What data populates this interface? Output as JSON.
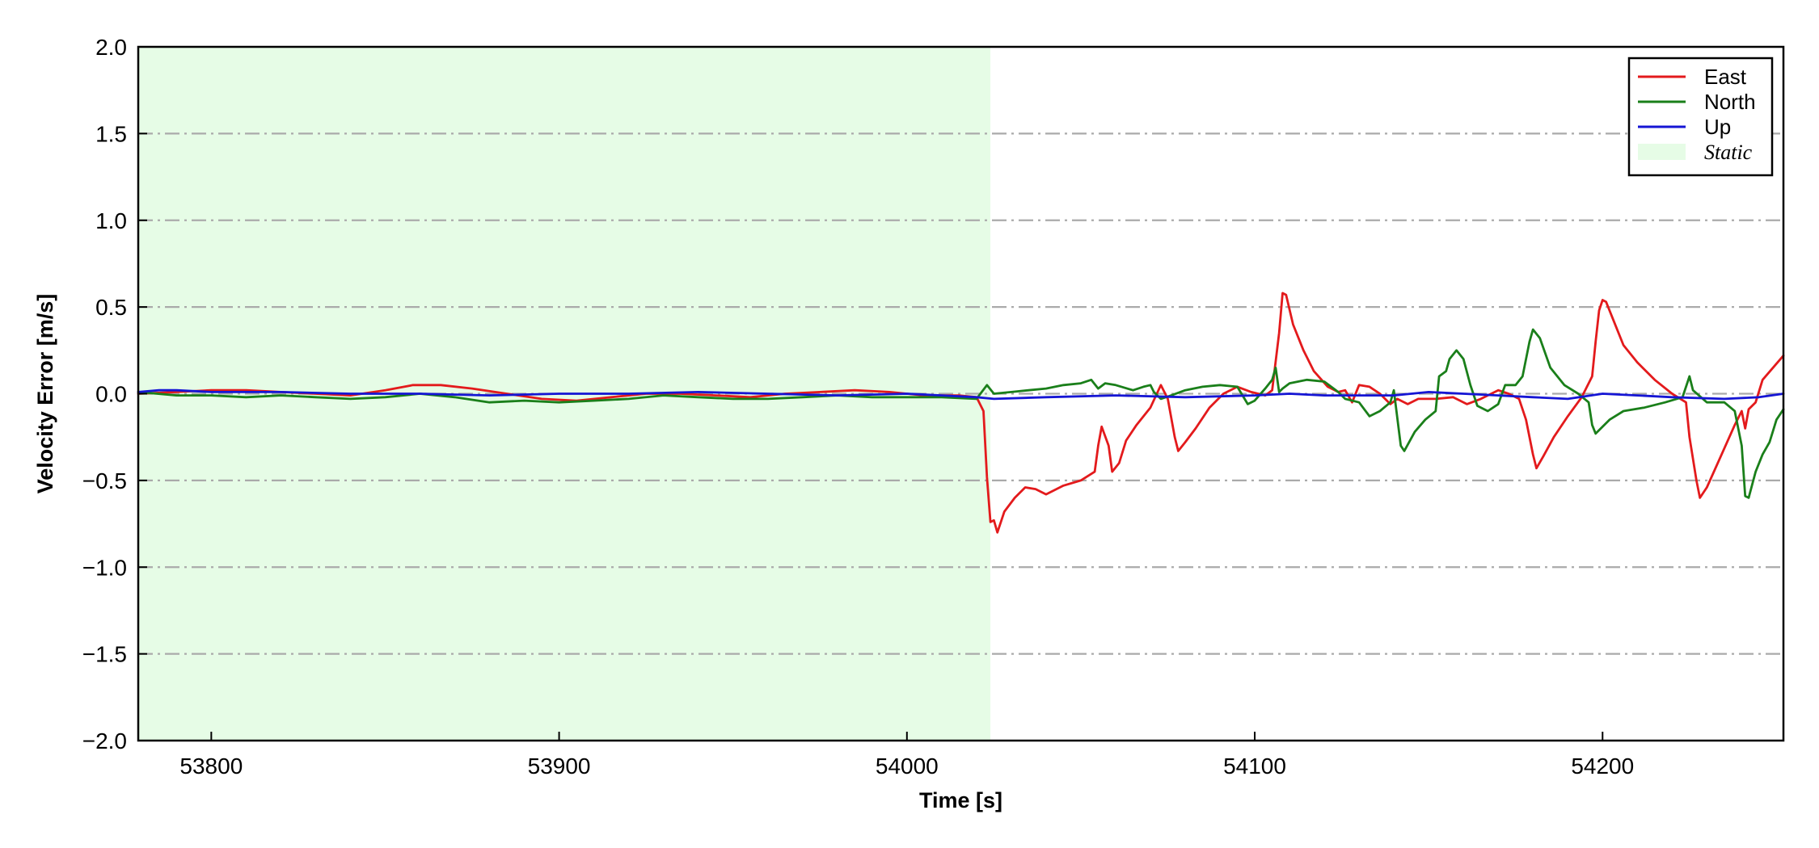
{
  "chart_data": {
    "type": "line",
    "xlabel": "Time [s]",
    "ylabel": "Velocity Error [m/s]",
    "xlim": [
      53779,
      54252
    ],
    "ylim": [
      -2.0,
      2.0
    ],
    "xticks": [
      53800,
      53900,
      54000,
      54100,
      54200
    ],
    "xtick_labels": [
      "53800",
      "53900",
      "54000",
      "54100",
      "54200"
    ],
    "yticks": [
      2.0,
      1.5,
      1.0,
      0.5,
      0.0,
      -0.5,
      -1.0,
      -1.5,
      -2.0
    ],
    "ytick_labels": [
      "2.0",
      "1.5",
      "1.0",
      "0.5",
      "0.0",
      "−0.5",
      "−1.0",
      "−1.5",
      "−2.0"
    ],
    "grid": "horizontal dash-dot",
    "legend_position": "top-right",
    "shaded_region": {
      "label": "Static",
      "x_start": 53779,
      "x_end": 54024,
      "color": "#e6fce6"
    },
    "series": [
      {
        "name": "East",
        "color": "#e31a1c",
        "points": [
          [
            53779,
            0.0
          ],
          [
            53790,
            0.01
          ],
          [
            53800,
            0.02
          ],
          [
            53810,
            0.02
          ],
          [
            53820,
            0.01
          ],
          [
            53830,
            0.0
          ],
          [
            53840,
            -0.01
          ],
          [
            53850,
            0.02
          ],
          [
            53858,
            0.05
          ],
          [
            53866,
            0.05
          ],
          [
            53875,
            0.03
          ],
          [
            53885,
            0.0
          ],
          [
            53895,
            -0.03
          ],
          [
            53905,
            -0.04
          ],
          [
            53915,
            -0.02
          ],
          [
            53925,
            0.0
          ],
          [
            53935,
            0.0
          ],
          [
            53945,
            -0.01
          ],
          [
            53955,
            -0.02
          ],
          [
            53965,
            0.0
          ],
          [
            53975,
            0.01
          ],
          [
            53985,
            0.02
          ],
          [
            53995,
            0.01
          ],
          [
            54005,
            -0.01
          ],
          [
            54015,
            -0.01
          ],
          [
            54020,
            -0.02
          ],
          [
            54022,
            -0.1
          ],
          [
            54023,
            -0.48
          ],
          [
            54024,
            -0.74
          ],
          [
            54025,
            -0.73
          ],
          [
            54026,
            -0.8
          ],
          [
            54028,
            -0.68
          ],
          [
            54031,
            -0.6
          ],
          [
            54034,
            -0.54
          ],
          [
            54037,
            -0.55
          ],
          [
            54040,
            -0.58
          ],
          [
            54045,
            -0.53
          ],
          [
            54050,
            -0.5
          ],
          [
            54054,
            -0.45
          ],
          [
            54055,
            -0.3
          ],
          [
            54056,
            -0.19
          ],
          [
            54058,
            -0.3
          ],
          [
            54059,
            -0.45
          ],
          [
            54061,
            -0.4
          ],
          [
            54063,
            -0.27
          ],
          [
            54066,
            -0.18
          ],
          [
            54070,
            -0.08
          ],
          [
            54073,
            0.05
          ],
          [
            54075,
            -0.03
          ],
          [
            54077,
            -0.25
          ],
          [
            54078,
            -0.33
          ],
          [
            54080,
            -0.28
          ],
          [
            54083,
            -0.2
          ],
          [
            54087,
            -0.08
          ],
          [
            54091,
            0.0
          ],
          [
            54095,
            0.04
          ],
          [
            54099,
            0.01
          ],
          [
            54103,
            -0.01
          ],
          [
            54105,
            0.02
          ],
          [
            54107,
            0.35
          ],
          [
            54108,
            0.58
          ],
          [
            54109,
            0.57
          ],
          [
            54111,
            0.4
          ],
          [
            54114,
            0.25
          ],
          [
            54117,
            0.13
          ],
          [
            54121,
            0.04
          ],
          [
            54124,
            0.01
          ],
          [
            54126,
            0.02
          ],
          [
            54128,
            -0.05
          ],
          [
            54130,
            0.05
          ],
          [
            54133,
            0.04
          ],
          [
            54136,
            0.0
          ],
          [
            54139,
            -0.06
          ],
          [
            54141,
            -0.03
          ],
          [
            54144,
            -0.06
          ],
          [
            54147,
            -0.03
          ],
          [
            54152,
            -0.03
          ],
          [
            54157,
            -0.02
          ],
          [
            54161,
            -0.06
          ],
          [
            54165,
            -0.03
          ],
          [
            54170,
            0.02
          ],
          [
            54173,
            0.0
          ],
          [
            54176,
            -0.03
          ],
          [
            54178,
            -0.15
          ],
          [
            54180,
            -0.35
          ],
          [
            54181,
            -0.43
          ],
          [
            54183,
            -0.36
          ],
          [
            54186,
            -0.25
          ],
          [
            54190,
            -0.13
          ],
          [
            54194,
            -0.02
          ],
          [
            54197,
            0.1
          ],
          [
            54198,
            0.3
          ],
          [
            54199,
            0.48
          ],
          [
            54200,
            0.54
          ],
          [
            54201,
            0.53
          ],
          [
            54203,
            0.43
          ],
          [
            54206,
            0.28
          ],
          [
            54210,
            0.18
          ],
          [
            54215,
            0.08
          ],
          [
            54220,
            0.0
          ],
          [
            54224,
            -0.05
          ],
          [
            54225,
            -0.25
          ],
          [
            54227,
            -0.5
          ],
          [
            54228,
            -0.6
          ],
          [
            54230,
            -0.54
          ],
          [
            54234,
            -0.36
          ],
          [
            54238,
            -0.18
          ],
          [
            54240,
            -0.1
          ],
          [
            54241,
            -0.2
          ],
          [
            54242,
            -0.09
          ],
          [
            54244,
            -0.05
          ],
          [
            54246,
            0.08
          ],
          [
            54249,
            0.15
          ],
          [
            54252,
            0.22
          ]
        ]
      },
      {
        "name": "North",
        "color": "#1a7f1a",
        "points": [
          [
            53779,
            0.01
          ],
          [
            53790,
            -0.01
          ],
          [
            53800,
            -0.01
          ],
          [
            53810,
            -0.02
          ],
          [
            53820,
            -0.01
          ],
          [
            53830,
            -0.02
          ],
          [
            53840,
            -0.03
          ],
          [
            53850,
            -0.02
          ],
          [
            53860,
            0.0
          ],
          [
            53870,
            -0.02
          ],
          [
            53880,
            -0.05
          ],
          [
            53890,
            -0.04
          ],
          [
            53900,
            -0.05
          ],
          [
            53910,
            -0.04
          ],
          [
            53920,
            -0.03
          ],
          [
            53930,
            -0.01
          ],
          [
            53940,
            -0.02
          ],
          [
            53950,
            -0.03
          ],
          [
            53960,
            -0.03
          ],
          [
            53970,
            -0.02
          ],
          [
            53980,
            -0.01
          ],
          [
            53990,
            -0.02
          ],
          [
            54000,
            -0.02
          ],
          [
            54010,
            -0.02
          ],
          [
            54020,
            -0.03
          ],
          [
            54023,
            0.05
          ],
          [
            54025,
            0.0
          ],
          [
            54030,
            0.01
          ],
          [
            54035,
            0.02
          ],
          [
            54040,
            0.03
          ],
          [
            54045,
            0.05
          ],
          [
            54050,
            0.06
          ],
          [
            54053,
            0.08
          ],
          [
            54055,
            0.03
          ],
          [
            54057,
            0.06
          ],
          [
            54060,
            0.05
          ],
          [
            54065,
            0.02
          ],
          [
            54068,
            0.04
          ],
          [
            54070,
            0.05
          ],
          [
            54071,
            0.01
          ],
          [
            54073,
            -0.03
          ],
          [
            54076,
            -0.01
          ],
          [
            54080,
            0.02
          ],
          [
            54085,
            0.04
          ],
          [
            54090,
            0.05
          ],
          [
            54095,
            0.04
          ],
          [
            54098,
            -0.06
          ],
          [
            54100,
            -0.04
          ],
          [
            54103,
            0.03
          ],
          [
            54105,
            0.08
          ],
          [
            54106,
            0.15
          ],
          [
            54107,
            0.01
          ],
          [
            54108,
            0.03
          ],
          [
            54110,
            0.06
          ],
          [
            54115,
            0.08
          ],
          [
            54120,
            0.07
          ],
          [
            54124,
            0.01
          ],
          [
            54126,
            -0.03
          ],
          [
            54130,
            -0.05
          ],
          [
            54133,
            -0.13
          ],
          [
            54136,
            -0.1
          ],
          [
            54139,
            -0.05
          ],
          [
            54140,
            0.02
          ],
          [
            54142,
            -0.3
          ],
          [
            54143,
            -0.33
          ],
          [
            54146,
            -0.22
          ],
          [
            54149,
            -0.15
          ],
          [
            54152,
            -0.1
          ],
          [
            54153,
            0.1
          ],
          [
            54155,
            0.13
          ],
          [
            54156,
            0.2
          ],
          [
            54158,
            0.25
          ],
          [
            54160,
            0.2
          ],
          [
            54162,
            0.05
          ],
          [
            54164,
            -0.07
          ],
          [
            54167,
            -0.1
          ],
          [
            54170,
            -0.06
          ],
          [
            54172,
            0.05
          ],
          [
            54175,
            0.05
          ],
          [
            54177,
            0.1
          ],
          [
            54179,
            0.3
          ],
          [
            54180,
            0.37
          ],
          [
            54182,
            0.32
          ],
          [
            54185,
            0.15
          ],
          [
            54189,
            0.05
          ],
          [
            54193,
            0.0
          ],
          [
            54196,
            -0.05
          ],
          [
            54197,
            -0.18
          ],
          [
            54198,
            -0.23
          ],
          [
            54202,
            -0.15
          ],
          [
            54206,
            -0.1
          ],
          [
            54212,
            -0.08
          ],
          [
            54218,
            -0.05
          ],
          [
            54223,
            -0.02
          ],
          [
            54225,
            0.1
          ],
          [
            54226,
            0.02
          ],
          [
            54230,
            -0.05
          ],
          [
            54235,
            -0.05
          ],
          [
            54238,
            -0.1
          ],
          [
            54240,
            -0.3
          ],
          [
            54241,
            -0.59
          ],
          [
            54242,
            -0.6
          ],
          [
            54244,
            -0.45
          ],
          [
            54246,
            -0.35
          ],
          [
            54248,
            -0.28
          ],
          [
            54250,
            -0.15
          ],
          [
            54252,
            -0.09
          ]
        ]
      },
      {
        "name": "Up",
        "color": "#1515d4",
        "points": [
          [
            53779,
            0.01
          ],
          [
            53785,
            0.02
          ],
          [
            53790,
            0.02
          ],
          [
            53800,
            0.01
          ],
          [
            53820,
            0.01
          ],
          [
            53840,
            0.0
          ],
          [
            53860,
            0.0
          ],
          [
            53880,
            -0.01
          ],
          [
            53900,
            0.0
          ],
          [
            53920,
            0.0
          ],
          [
            53940,
            0.01
          ],
          [
            53960,
            0.0
          ],
          [
            53980,
            -0.01
          ],
          [
            54000,
            0.0
          ],
          [
            54010,
            -0.01
          ],
          [
            54020,
            -0.02
          ],
          [
            54025,
            -0.03
          ],
          [
            54040,
            -0.02
          ],
          [
            54060,
            -0.01
          ],
          [
            54080,
            -0.02
          ],
          [
            54100,
            -0.01
          ],
          [
            54110,
            0.0
          ],
          [
            54120,
            -0.01
          ],
          [
            54140,
            -0.01
          ],
          [
            54150,
            0.01
          ],
          [
            54160,
            0.0
          ],
          [
            54170,
            -0.01
          ],
          [
            54180,
            -0.02
          ],
          [
            54190,
            -0.03
          ],
          [
            54200,
            0.0
          ],
          [
            54210,
            -0.01
          ],
          [
            54220,
            -0.02
          ],
          [
            54235,
            -0.03
          ],
          [
            54245,
            -0.02
          ],
          [
            54252,
            0.0
          ]
        ]
      }
    ]
  }
}
